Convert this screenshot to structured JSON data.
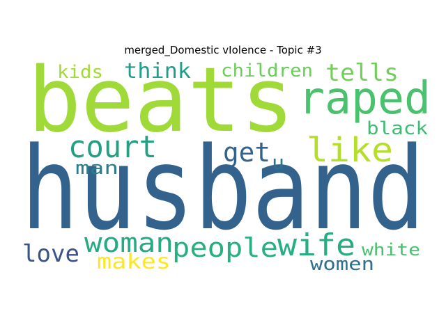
{
  "title": "merged_Domestic vIolence - Topic #3",
  "words": [
    {
      "text": "husband",
      "color": "#33638d"
    },
    {
      "text": "beats",
      "color": "#a0da39"
    },
    {
      "text": "raped",
      "color": "#4ac16d"
    },
    {
      "text": "like",
      "color": "#b5de2b"
    },
    {
      "text": "court",
      "color": "#23a083"
    },
    {
      "text": "tells",
      "color": "#70cf57"
    },
    {
      "text": "think",
      "color": "#1f9e89"
    },
    {
      "text": "children",
      "color": "#6ccd5a"
    },
    {
      "text": "kids",
      "color": "#a2da37"
    },
    {
      "text": "black",
      "color": "#3dbc74"
    },
    {
      "text": "get",
      "color": "#33638d"
    },
    {
      "text": "u",
      "color": "#2c728e"
    },
    {
      "text": "man",
      "color": "#277f8e"
    },
    {
      "text": "woman",
      "color": "#25ab82"
    },
    {
      "text": "people",
      "color": "#29af7f"
    },
    {
      "text": "wife",
      "color": "#26ad81"
    },
    {
      "text": "love",
      "color": "#3b528b"
    },
    {
      "text": "makes",
      "color": "#fde725"
    },
    {
      "text": "white",
      "color": "#48c16e"
    },
    {
      "text": "women",
      "color": "#2d708e"
    }
  ]
}
